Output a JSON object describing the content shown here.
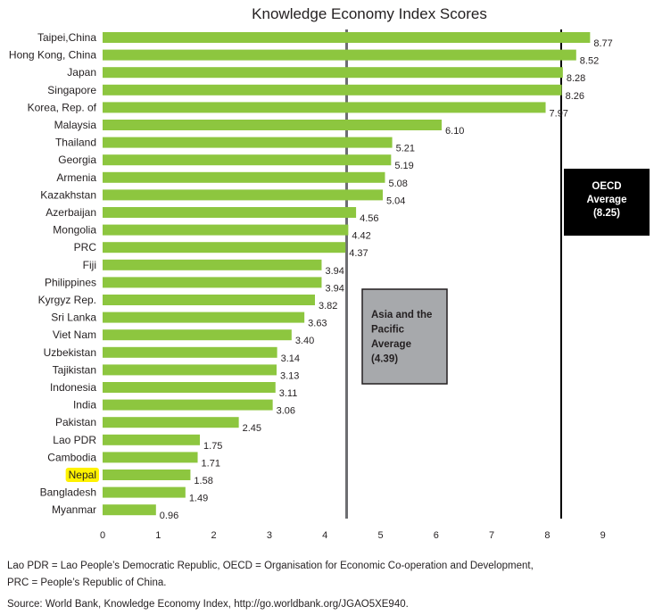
{
  "chart_data": {
    "type": "bar",
    "orientation": "horizontal",
    "title": "Knowledge Economy Index Scores",
    "categories": [
      "Taipei,China",
      "Hong Kong, China",
      "Japan",
      "Singapore",
      "Korea, Rep. of",
      "Malaysia",
      "Thailand",
      "Georgia",
      "Armenia",
      "Kazakhstan",
      "Azerbaijan",
      "Mongolia",
      "PRC",
      "Fiji",
      "Philippines",
      "Kyrgyz Rep.",
      "Sri Lanka",
      "Viet Nam",
      "Uzbekistan",
      "Tajikistan",
      "Indonesia",
      "India",
      "Pakistan",
      "Lao PDR",
      "Cambodia",
      "Nepal",
      "Bangladesh",
      "Myanmar"
    ],
    "value_labels": [
      "8.77",
      "8.52",
      "8.28",
      "8.26",
      "7.97",
      "6.10",
      "5.21",
      "5.19",
      "5.08",
      "5.04",
      "4.56",
      "4.42",
      "4.37",
      "3.94",
      "3.94",
      "3.82",
      "3.63",
      "3.40",
      "3.14",
      "3.13",
      "3.11",
      "3.06",
      "2.45",
      "1.75",
      "1.71",
      "1.58",
      "1.49",
      "0.96"
    ],
    "values": [
      8.77,
      8.52,
      8.28,
      8.26,
      7.97,
      6.1,
      5.21,
      5.19,
      5.08,
      5.04,
      4.56,
      4.42,
      4.37,
      3.94,
      3.94,
      3.82,
      3.63,
      3.4,
      3.14,
      3.13,
      3.11,
      3.06,
      2.45,
      1.75,
      1.71,
      1.58,
      1.49,
      0.96
    ],
    "highlighted_category": "Nepal",
    "xlim": [
      0,
      9
    ],
    "xticks": [
      "0",
      "1",
      "2",
      "3",
      "4",
      "5",
      "6",
      "7",
      "8",
      "9"
    ],
    "xlabel": "",
    "ylabel": "",
    "reference_lines": [
      {
        "name": "asia",
        "value": 4.39,
        "label_lines": [
          "Asia and the",
          "Pacific",
          "Average",
          "(4.39)"
        ]
      },
      {
        "name": "oecd",
        "value": 8.25,
        "label_lines": [
          "OECD",
          "Average",
          "(8.25)"
        ]
      }
    ],
    "colors": {
      "bar": "#8dc63f",
      "highlight": "#fff200",
      "asia_box": "#a7a9ac",
      "asia_line": "#6d6e71",
      "oecd_box": "#000000",
      "oecd_line": "#000000"
    }
  },
  "footnotes": {
    "abbreviations_line1": "Lao PDR = Lao People’s Democratic Republic, OECD = Organisation for Economic Co-operation and Development,",
    "abbreviations_line2": "PRC = People’s Republic of China.",
    "source": "Source: World Bank, Knowledge Economy Index, http://go.worldbank.org/JGAO5XE940."
  }
}
